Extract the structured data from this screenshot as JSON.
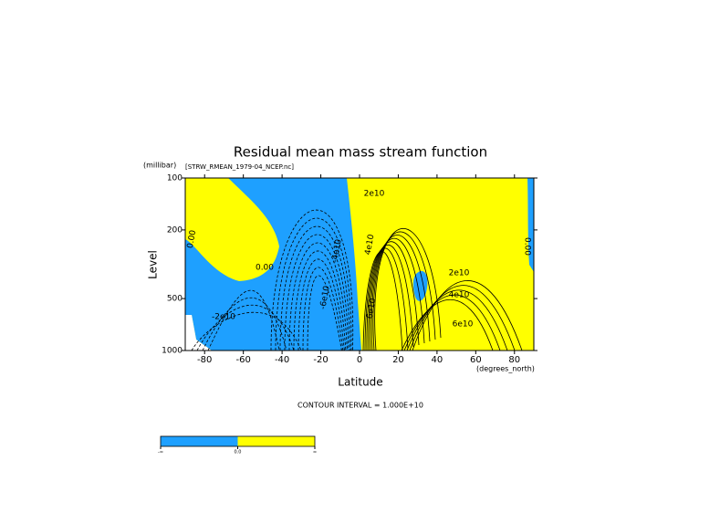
{
  "chart_data": {
    "type": "contour",
    "title": "Residual mean mass stream function",
    "subtitle": "[STRW_RMEAN_1979-04_NCEP.nc]",
    "y_unit_label": "(millibar)",
    "y_label": "Level",
    "x_label": "Latitude",
    "x_unit_label": "(degrees_north)",
    "xlim": [
      -90,
      90
    ],
    "xticks": [
      -80,
      -60,
      -40,
      -20,
      0,
      20,
      40,
      60,
      80
    ],
    "ylim": [
      1000,
      100
    ],
    "yticks": [
      100,
      200,
      500,
      1000
    ],
    "log_y": true,
    "contour_interval_text": "CONTOUR INTERVAL = 1.000E+10",
    "contour_labels": [
      "2e10",
      "2e10",
      "4e10",
      "6e10",
      "4e10",
      "6e10",
      "0.00",
      "0.00",
      "0.00",
      "-2e10",
      "-6e10",
      "-4e10"
    ],
    "colorbar": {
      "colors": [
        "#1ea0ff",
        "#ffff00"
      ],
      "labels": [
        "-∞",
        "0.0",
        "∞"
      ]
    }
  }
}
